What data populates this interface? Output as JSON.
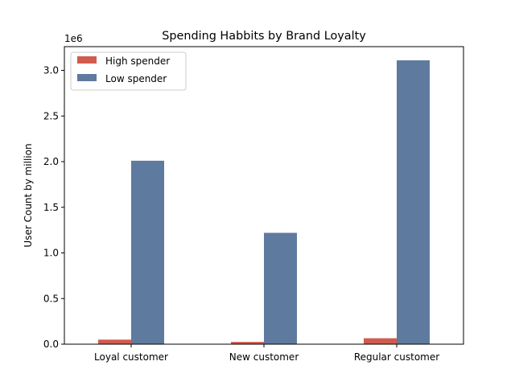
{
  "chart_data": {
    "type": "bar",
    "title": "Spending Habbits by Brand Loyalty",
    "xlabel": "",
    "ylabel": "User Count by million",
    "y_offset_label": "1e6",
    "categories": [
      "Loyal customer",
      "New customer",
      "Regular customer"
    ],
    "series": [
      {
        "name": "High spender",
        "color": "#d05b4e",
        "values": [
          50000,
          25000,
          65000
        ]
      },
      {
        "name": "Low spender",
        "color": "#5f7a9f",
        "values": [
          2010000,
          1220000,
          3110000
        ]
      }
    ],
    "ylim": [
      0,
      3260000
    ],
    "yticks": [
      0,
      500000,
      1000000,
      1500000,
      2000000,
      2500000,
      3000000
    ],
    "ytick_labels": [
      "0.0",
      "0.5",
      "1.0",
      "1.5",
      "2.0",
      "2.5",
      "3.0"
    ],
    "grid": false,
    "legend_position": "top-left"
  }
}
